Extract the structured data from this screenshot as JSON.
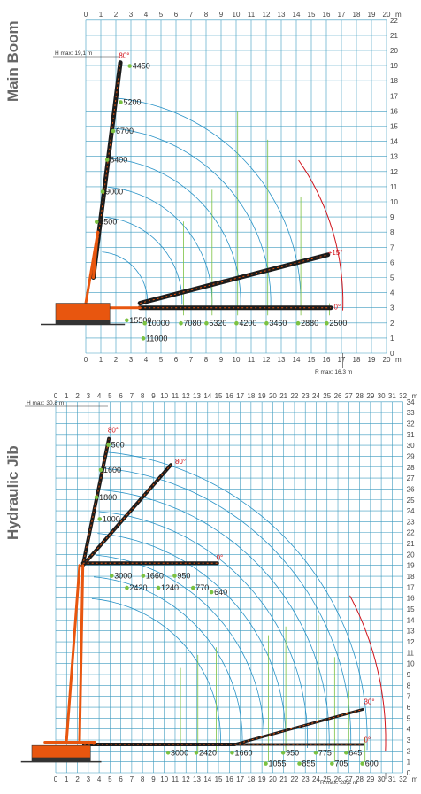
{
  "colors": {
    "grid": "#3d9bbf",
    "arc": "#2a93c7",
    "red": "#d0141c",
    "green": "#7cc242",
    "boom": "#1c1c1c",
    "orange": "#e8560f"
  },
  "chart_data": [
    {
      "type": "load-chart",
      "title": "Main Boom",
      "xunit": "m",
      "xlim": [
        0,
        20
      ],
      "ylim": [
        0,
        22
      ],
      "xticks": [
        "0",
        "1",
        "2",
        "3",
        "4",
        "5",
        "6",
        "7",
        "8",
        "9",
        "10",
        "11",
        "12",
        "13",
        "14",
        "15",
        "16",
        "17",
        "18",
        "19",
        "20"
      ],
      "yticks": [
        "0",
        "1",
        "2",
        "3",
        "4",
        "5",
        "6",
        "7",
        "8",
        "9",
        "10",
        "11",
        "12",
        "13",
        "14",
        "15",
        "16",
        "17",
        "18",
        "19",
        "20",
        "21",
        "22"
      ],
      "hmax": "H max: 19,1 m",
      "rmax": "R max: 16,3 m",
      "angles": [
        {
          "label": "80°",
          "x": 2.2,
          "y": 19.5
        },
        {
          "label": "+15°",
          "x": 16.1,
          "y": 6.5
        },
        {
          "label": "0°",
          "x": 16.5,
          "y": 2.9
        }
      ],
      "loads_on_boom": [
        {
          "label": "4450",
          "x": 3.1,
          "y": 18.8
        },
        {
          "label": "5200",
          "x": 2.5,
          "y": 16.4
        },
        {
          "label": "6700",
          "x": 2.0,
          "y": 14.5
        },
        {
          "label": "8400",
          "x": 1.6,
          "y": 12.6
        },
        {
          "label": "9000",
          "x": 1.3,
          "y": 10.5
        },
        {
          "label": "9500",
          "x": 0.9,
          "y": 8.5
        }
      ],
      "loads_horizontal": [
        {
          "label": "15500",
          "x": 2.9,
          "y": 2.0
        },
        {
          "label": "10000",
          "x": 4.1,
          "y": 1.8
        },
        {
          "label": "11000",
          "x": 4.0,
          "y": 0.8
        },
        {
          "label": "7080",
          "x": 6.5,
          "y": 1.8
        },
        {
          "label": "5320",
          "x": 8.2,
          "y": 1.8
        },
        {
          "label": "4200",
          "x": 10.2,
          "y": 1.8
        },
        {
          "label": "3460",
          "x": 12.2,
          "y": 1.8
        },
        {
          "label": "2880",
          "x": 14.3,
          "y": 1.8
        },
        {
          "label": "2500",
          "x": 16.2,
          "y": 1.8
        }
      ]
    },
    {
      "type": "load-chart",
      "title": "Hydraulic Jib",
      "xunit": "m",
      "xlim": [
        0,
        32
      ],
      "ylim": [
        0,
        34
      ],
      "xticks": [
        "0",
        "1",
        "2",
        "3",
        "4",
        "5",
        "6",
        "7",
        "8",
        "9",
        "10",
        "11",
        "12",
        "13",
        "14",
        "15",
        "16",
        "17",
        "18",
        "19",
        "20",
        "21",
        "22",
        "23",
        "24",
        "25",
        "26",
        "27",
        "28",
        "29",
        "30",
        "31",
        "32"
      ],
      "yticks": [
        "0",
        "1",
        "2",
        "3",
        "4",
        "5",
        "6",
        "7",
        "8",
        "9",
        "10",
        "11",
        "12",
        "13",
        "14",
        "15",
        "16",
        "17",
        "18",
        "19",
        "20",
        "21",
        "22",
        "23",
        "24",
        "25",
        "26",
        "27",
        "28",
        "29",
        "30",
        "31",
        "32",
        "33",
        "34"
      ],
      "hmax": "H max: 30,8 m",
      "rmax": "R max: 28,2 m",
      "angles": [
        {
          "label": "80°",
          "x": 4.8,
          "y": 31.2
        },
        {
          "label": "80°",
          "x": 11,
          "y": 28.3
        },
        {
          "label": "0°",
          "x": 14.8,
          "y": 19.5
        },
        {
          "label": "30°",
          "x": 28.4,
          "y": 6.3
        },
        {
          "label": "0°",
          "x": 28.4,
          "y": 2.8
        }
      ],
      "loads_on_boom": [
        {
          "label": "500",
          "x": 5.1,
          "y": 29.8
        },
        {
          "label": "1600",
          "x": 4.4,
          "y": 27.5
        },
        {
          "label": "1800",
          "x": 4.0,
          "y": 25.0
        },
        {
          "label": "1000",
          "x": 4.3,
          "y": 23.0
        }
      ],
      "loads_mid": [
        {
          "label": "3000",
          "x": 5.4,
          "y": 17.8
        },
        {
          "label": "1660",
          "x": 8.3,
          "y": 17.8
        },
        {
          "label": "950",
          "x": 11.2,
          "y": 17.8
        },
        {
          "label": "640",
          "x": 14.6,
          "y": 16.3
        },
        {
          "label": "2420",
          "x": 6.8,
          "y": 16.7
        },
        {
          "label": "1240",
          "x": 9.7,
          "y": 16.7
        },
        {
          "label": "770",
          "x": 12.9,
          "y": 16.7
        }
      ],
      "loads_bottom": [
        {
          "label": "3000",
          "x": 10.6,
          "y": 1.6
        },
        {
          "label": "2420",
          "x": 13.2,
          "y": 1.6
        },
        {
          "label": "1660",
          "x": 16.5,
          "y": 1.6
        },
        {
          "label": "1055",
          "x": 19.6,
          "y": 0.6
        },
        {
          "label": "950",
          "x": 21.2,
          "y": 1.6
        },
        {
          "label": "855",
          "x": 22.7,
          "y": 0.6
        },
        {
          "label": "775",
          "x": 24.2,
          "y": 1.6
        },
        {
          "label": "705",
          "x": 25.7,
          "y": 0.6
        },
        {
          "label": "645",
          "x": 27.0,
          "y": 1.6
        },
        {
          "label": "600",
          "x": 28.5,
          "y": 0.6
        }
      ]
    }
  ]
}
